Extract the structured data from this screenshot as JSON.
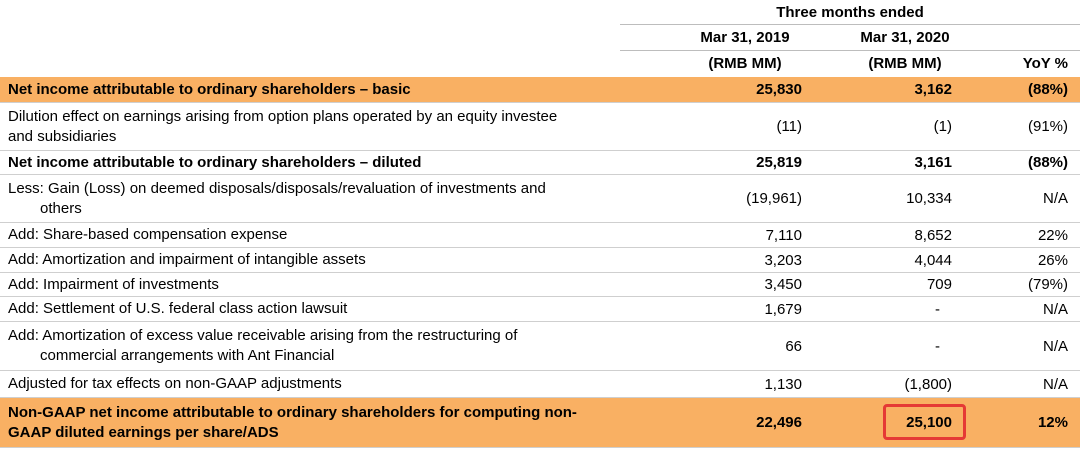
{
  "header": {
    "period": "Three months ended",
    "col1_date": "Mar 31, 2019",
    "col2_date": "Mar 31, 2020",
    "col1_unit": "(RMB MM)",
    "col2_unit": "(RMB MM)",
    "col3_unit": "YoY %"
  },
  "rows": [
    {
      "label": "Net income attributable to ordinary shareholders – basic",
      "v2019": "25,830",
      "v2020": "3,162",
      "yoy": "(88%)"
    },
    {
      "label_line1": "Dilution effect on earnings arising from option plans operated by an equity investee",
      "label_line2": "and subsidiaries",
      "v2019": "(11)",
      "v2020": "(1)",
      "yoy": "(91%)"
    },
    {
      "label": "Net income attributable to ordinary shareholders – diluted",
      "v2019": "25,819",
      "v2020": "3,161",
      "yoy": "(88%)"
    },
    {
      "label_line1": "Less: Gain (Loss) on deemed disposals/disposals/revaluation of investments and",
      "label_line2": "others",
      "v2019": "(19,961)",
      "v2020": "10,334",
      "yoy": "N/A"
    },
    {
      "label": "Add: Share-based compensation expense",
      "v2019": "7,110",
      "v2020": "8,652",
      "yoy": "22%"
    },
    {
      "label": "Add: Amortization and impairment of intangible assets",
      "v2019": "3,203",
      "v2020": "4,044",
      "yoy": "26%"
    },
    {
      "label": "Add: Impairment of investments",
      "v2019": "3,450",
      "v2020": "709",
      "yoy": "(79%)"
    },
    {
      "label": "Add: Settlement of U.S. federal class action lawsuit",
      "v2019": "1,679",
      "v2020": "-",
      "yoy": "N/A"
    },
    {
      "label_line1": "Add: Amortization of excess value receivable arising from the restructuring of",
      "label_line2": "commercial arrangements with Ant Financial",
      "v2019": "66",
      "v2020": "-",
      "yoy": "N/A"
    },
    {
      "label": "Adjusted for tax effects on non-GAAP adjustments",
      "v2019": "1,130",
      "v2020": "(1,800)",
      "yoy": "N/A"
    },
    {
      "label_line1": "Non-GAAP net income attributable to ordinary shareholders for computing non-",
      "label_line2": "GAAP diluted earnings per share/ADS",
      "v2019": "22,496",
      "v2020": "25,100",
      "yoy": "12%"
    }
  ],
  "colors": {
    "highlight_row": "#f9b063",
    "callout_border": "#e53935"
  }
}
